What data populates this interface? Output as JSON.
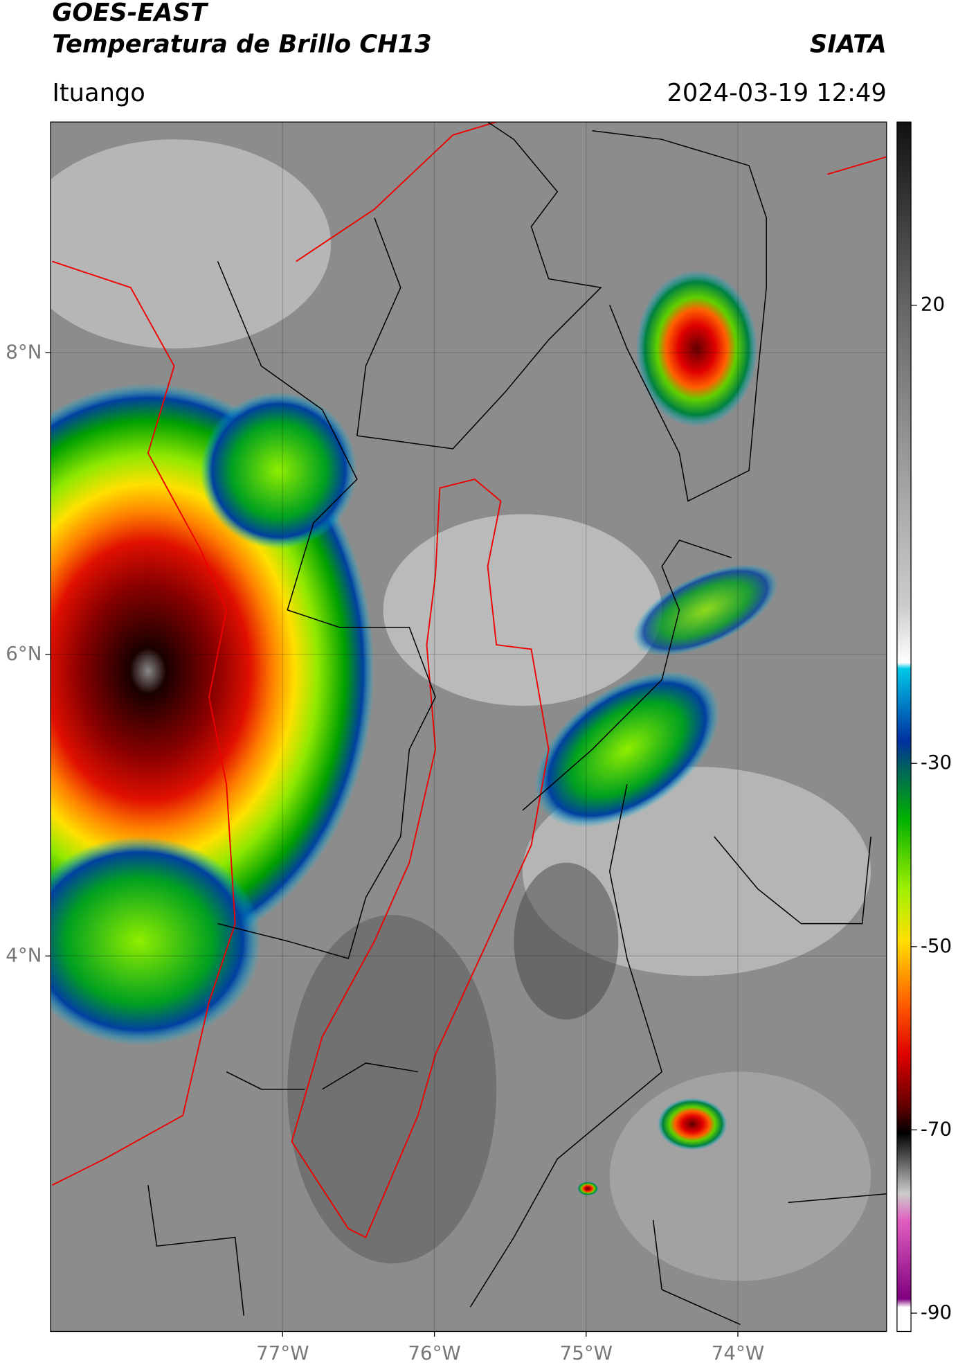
{
  "header": {
    "title": "GOES-EAST",
    "subtitle": "Temperatura de Brillo CH13",
    "source": "SIATA",
    "location": "Ituango",
    "datetime": "2024-03-19 12:49"
  },
  "chart_data": {
    "type": "map",
    "xlim": [
      -78.53,
      -73.02
    ],
    "ylim": [
      1.51,
      9.53
    ],
    "xticks": [
      {
        "value": -77,
        "label": "77°W"
      },
      {
        "value": -76,
        "label": "76°W"
      },
      {
        "value": -75,
        "label": "75°W"
      },
      {
        "value": -74,
        "label": "74°W"
      }
    ],
    "yticks": [
      {
        "value": 4,
        "label": "4°N"
      },
      {
        "value": 6,
        "label": "6°N"
      },
      {
        "value": 8,
        "label": "8°N"
      }
    ],
    "grid": true,
    "colorbar": {
      "lim": [
        -92,
        40
      ],
      "ticks": [
        -90,
        -70,
        -50,
        -30,
        20
      ]
    }
  }
}
